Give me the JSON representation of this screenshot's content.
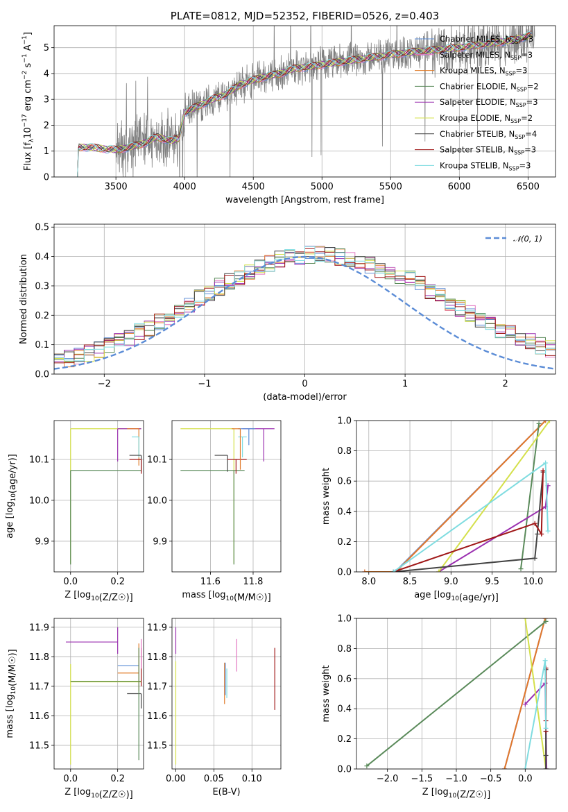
{
  "chart_data": [
    {
      "id": "spectrum",
      "type": "line",
      "title": "PLATE=0812, MJD=52352, FIBERID=0526, z=0.403",
      "xlabel": "wavelength [Angstrom, rest frame]",
      "ylabel": "Flux [f_λ 10^-17 erg cm^-2 s^-1 A^-1]",
      "xlim": [
        3050,
        6700
      ],
      "ylim": [
        0,
        5.85
      ],
      "xticks": [
        3500,
        4000,
        4500,
        5000,
        5500,
        6000,
        6500
      ],
      "yticks": [
        0,
        1,
        2,
        3,
        4,
        5
      ],
      "data_series": {
        "name": "data",
        "color": "#808080"
      },
      "models_continuum": {
        "x": [
          3220,
          3230,
          3300,
          3400,
          3500,
          3600,
          3700,
          3800,
          3900,
          3960,
          4000,
          4100,
          4200,
          4300,
          4400,
          4500,
          4600,
          4700,
          4800,
          4900,
          5000,
          5200,
          5400,
          5600,
          5800,
          6000,
          6200,
          6400,
          6530
        ],
        "y": [
          0.0,
          1.15,
          1.15,
          1.1,
          1.05,
          1.15,
          1.3,
          1.55,
          1.4,
          1.5,
          2.5,
          2.75,
          3.0,
          3.2,
          3.55,
          3.75,
          3.9,
          4.0,
          4.2,
          4.25,
          4.35,
          4.5,
          4.65,
          4.8,
          4.9,
          5.0,
          5.15,
          5.3,
          5.5
        ]
      },
      "legend": [
        {
          "name": "Chabrier MILES, N",
          "sub": "SSP",
          "val": "=3",
          "color": "#5b8cd6"
        },
        {
          "name": "Salpeter MILES, N",
          "sub": "SSP",
          "val": "=3",
          "color": "#e377c2"
        },
        {
          "name": "Kroupa MILES, N",
          "sub": "SSP",
          "val": "=3",
          "color": "#e07b2a"
        },
        {
          "name": "Chabrier ELODIE, N",
          "sub": "SSP",
          "val": "=2",
          "color": "#5a8a5a"
        },
        {
          "name": "Salpeter ELODIE, N",
          "sub": "SSP",
          "val": "=3",
          "color": "#9b30b0"
        },
        {
          "name": "Kroupa ELODIE, N",
          "sub": "SSP",
          "val": "=2",
          "color": "#d4e04a"
        },
        {
          "name": "Chabrier STELIB, N",
          "sub": "SSP",
          "val": "=4",
          "color": "#444444"
        },
        {
          "name": "Salpeter STELIB, N",
          "sub": "SSP",
          "val": "=3",
          "color": "#a01818"
        },
        {
          "name": "Kroupa STELIB, N",
          "sub": "SSP",
          "val": "=3",
          "color": "#7fdce0"
        }
      ]
    },
    {
      "id": "residuals",
      "type": "line",
      "xlabel": "(data-model)/error",
      "ylabel": "Normed distribution",
      "xlim": [
        -2.5,
        2.5
      ],
      "ylim": [
        0,
        0.51
      ],
      "xticks": [
        -2,
        -1,
        0,
        1,
        2
      ],
      "yticks": [
        0.0,
        0.1,
        0.2,
        0.3,
        0.4,
        0.5
      ],
      "legend_label": "𝒩(0, 1)",
      "gaussian_color": "#5b8cd6",
      "bin_width": 0.1,
      "series": [
        {
          "name": "Chabrier MILES",
          "color": "#5b8cd6"
        },
        {
          "name": "Salpeter MILES",
          "color": "#e377c2"
        },
        {
          "name": "Kroupa MILES",
          "color": "#e07b2a"
        },
        {
          "name": "Chabrier ELODIE",
          "color": "#5a8a5a"
        },
        {
          "name": "Salpeter ELODIE",
          "color": "#9b30b0"
        },
        {
          "name": "Kroupa ELODIE",
          "color": "#d4e04a"
        },
        {
          "name": "Chabrier STELIB",
          "color": "#444444"
        },
        {
          "name": "Salpeter STELIB",
          "color": "#a01818"
        },
        {
          "name": "Kroupa STELIB",
          "color": "#7fdce0"
        }
      ]
    },
    {
      "id": "age_vs_Z",
      "type": "scatter",
      "xlabel": "Z [log10(Z/Z☉)]",
      "ylabel": "age [log10(age/yr)]",
      "xlim": [
        -0.07,
        0.31
      ],
      "ylim": [
        9.825,
        10.195
      ],
      "xticks": [
        0.0,
        0.2
      ],
      "yticks": [
        9.9,
        10.0,
        10.1
      ],
      "points": [
        {
          "x": 0.0,
          "y": 10.175,
          "xerr": [
            0.0,
            0.3
          ],
          "yerr": [
            0.33,
            0.0
          ],
          "color": "#d4e04a"
        },
        {
          "x": 0.0,
          "y": 10.073,
          "xerr": [
            0.0,
            0.3
          ],
          "yerr": [
            0.23,
            0.0
          ],
          "color": "#5a8a5a"
        },
        {
          "x": 0.2,
          "y": 10.175,
          "xerr": [
            0.0,
            0.1
          ],
          "yerr": [
            0.08,
            0.0
          ],
          "color": "#9b30b0"
        },
        {
          "x": 0.29,
          "y": 10.175,
          "xerr": [
            0.05,
            0.0
          ],
          "yerr": [
            0.09,
            0.0
          ],
          "color": "#e07b2a"
        },
        {
          "x": 0.29,
          "y": 10.155,
          "xerr": [
            0.03,
            0.0
          ],
          "yerr": [
            0.05,
            0.0
          ],
          "color": "#7fdce0"
        },
        {
          "x": 0.3,
          "y": 10.11,
          "xerr": [
            0.05,
            0.0
          ],
          "yerr": [
            0.04,
            0.0
          ],
          "color": "#444444"
        },
        {
          "x": 0.3,
          "y": 10.1,
          "xerr": [
            0.05,
            0.0
          ],
          "yerr": [
            0.035,
            0.0
          ],
          "color": "#a01818"
        }
      ]
    },
    {
      "id": "age_vs_mass",
      "type": "scatter",
      "xlabel": "mass [log10(M/M☉)]",
      "xlim": [
        11.42,
        11.93
      ],
      "ylim": [
        9.825,
        10.195
      ],
      "xticks": [
        11.6,
        11.8
      ],
      "yticks": [
        9.9,
        10.0,
        10.1
      ],
      "points": [
        {
          "x": 11.71,
          "y": 10.175,
          "xerr": [
            0.25,
            0.0
          ],
          "yerr": [
            0.33,
            0.0
          ],
          "color": "#d4e04a"
        },
        {
          "x": 11.71,
          "y": 10.073,
          "xerr": [
            0.25,
            0.05
          ],
          "yerr": [
            0.23,
            0.0
          ],
          "color": "#5a8a5a"
        },
        {
          "x": 11.85,
          "y": 10.175,
          "xerr": [
            0.1,
            0.05
          ],
          "yerr": [
            0.08,
            0.0
          ],
          "color": "#9b30b0"
        },
        {
          "x": 11.78,
          "y": 10.175,
          "xerr": [
            0.05,
            0.03
          ],
          "yerr": [
            0.04,
            0.0
          ],
          "color": "#5b8cd6"
        },
        {
          "x": 11.75,
          "y": 10.155,
          "xerr": [
            0.02,
            0.02
          ],
          "yerr": [
            0.05,
            0.0
          ],
          "color": "#7fdce0"
        },
        {
          "x": 11.68,
          "y": 10.11,
          "xerr": [
            0.06,
            0.0
          ],
          "yerr": [
            0.04,
            0.0
          ],
          "color": "#444444"
        },
        {
          "x": 11.72,
          "y": 10.1,
          "xerr": [
            0.04,
            0.05
          ],
          "yerr": [
            0.035,
            0.0
          ],
          "color": "#a01818"
        },
        {
          "x": 11.74,
          "y": 10.175,
          "xerr": [
            0.04,
            0.0
          ],
          "yerr": [
            0.1,
            0.0
          ],
          "color": "#e07b2a"
        }
      ]
    },
    {
      "id": "weight_vs_age",
      "type": "line",
      "xlabel": "age [log10(age/yr)]",
      "ylabel": "mass weight",
      "xlim": [
        7.85,
        10.28
      ],
      "ylim": [
        0,
        1.0
      ],
      "xticks": [
        8.0,
        8.5,
        9.0,
        9.5,
        10.0
      ],
      "yticks": [
        0.0,
        0.2,
        0.4,
        0.6,
        0.8,
        1.0
      ],
      "series": [
        {
          "name": "Chabrier MILES",
          "color": "#5b8cd6",
          "x": [
            8.32,
            10.15
          ],
          "y": [
            0.0,
            1.0
          ]
        },
        {
          "name": "Salpeter MILES",
          "color": "#e377c2",
          "x": [
            7.95,
            8.33,
            10.15
          ],
          "y": [
            0.0,
            0.0,
            1.0
          ]
        },
        {
          "name": "Kroupa MILES",
          "color": "#e07b2a",
          "x": [
            7.95,
            8.33,
            10.15
          ],
          "y": [
            0.0,
            0.0,
            1.0
          ]
        },
        {
          "name": "Chabrier ELODIE",
          "color": "#5a8a5a",
          "x": [
            9.85,
            10.07
          ],
          "y": [
            0.02,
            0.98
          ]
        },
        {
          "name": "Salpeter ELODIE",
          "color": "#9b30b0",
          "x": [
            8.85,
            10.15,
            10.18
          ],
          "y": [
            0.0,
            0.43,
            0.57
          ]
        },
        {
          "name": "Kroupa ELODIE",
          "color": "#d4e04a",
          "x": [
            8.85,
            10.2
          ],
          "y": [
            0.0,
            1.0
          ]
        },
        {
          "name": "Chabrier STELIB",
          "color": "#444444",
          "x": [
            8.3,
            10.02,
            10.05,
            10.12
          ],
          "y": [
            0.0,
            0.09,
            0.25,
            0.66
          ]
        },
        {
          "name": "Salpeter STELIB",
          "color": "#a01818",
          "x": [
            8.3,
            10.02,
            10.1,
            10.12
          ],
          "y": [
            0.0,
            0.32,
            0.25,
            0.67
          ]
        },
        {
          "name": "Kroupa STELIB",
          "color": "#7fdce0",
          "x": [
            8.3,
            10.15,
            10.18
          ],
          "y": [
            0.0,
            0.72,
            0.27
          ]
        }
      ]
    },
    {
      "id": "mass_vs_Z",
      "type": "scatter",
      "xlabel": "Z [log10(Z/Z☉)]",
      "ylabel": "mass [log10(M/M☉)]",
      "xlim": [
        -0.07,
        0.31
      ],
      "ylim": [
        11.42,
        11.93
      ],
      "xticks": [
        0.0,
        0.2
      ],
      "yticks": [
        11.5,
        11.6,
        11.7,
        11.8,
        11.9
      ],
      "points": [
        {
          "x": 0.0,
          "y": 11.715,
          "xerr": [
            0.0,
            0.3
          ],
          "yerr": [
            0.28,
            0.06
          ],
          "color": "#d4e04a"
        },
        {
          "x": 0.0,
          "y": 11.717,
          "xerr": [
            0.0,
            0.3
          ],
          "yerr": [
            0.0,
            0.0
          ],
          "color": "#5a8a5a"
        },
        {
          "x": 0.2,
          "y": 11.85,
          "xerr": [
            0.22,
            0.0
          ],
          "yerr": [
            0.04,
            0.05
          ],
          "color": "#9b30b0"
        },
        {
          "x": 0.29,
          "y": 11.77,
          "xerr": [
            0.09,
            0.0
          ],
          "yerr": [
            0.0,
            0.0
          ],
          "color": "#5b8cd6"
        },
        {
          "x": 0.29,
          "y": 11.745,
          "xerr": [
            0.09,
            0.0
          ],
          "yerr": [
            0.06,
            0.1
          ],
          "color": "#e07b2a"
        },
        {
          "x": 0.3,
          "y": 11.675,
          "xerr": [
            0.06,
            0.0
          ],
          "yerr": [
            0.05,
            0.0
          ],
          "color": "#444444"
        },
        {
          "x": 0.29,
          "y": 11.75,
          "xerr": [
            0.0,
            0.0
          ],
          "yerr": [
            0.3,
            0.08
          ],
          "color": "#5a8a5a"
        },
        {
          "x": 0.3,
          "y": 11.75,
          "xerr": [
            0.0,
            0.0
          ],
          "yerr": [
            0.05,
            0.08
          ],
          "color": "#a01818"
        },
        {
          "x": 0.3,
          "y": 11.8,
          "xerr": [
            0.0,
            0.0
          ],
          "yerr": [
            0.04,
            0.06
          ],
          "color": "#e377c2"
        }
      ]
    },
    {
      "id": "mass_vs_EBV",
      "type": "scatter",
      "xlabel": "E(B-V)",
      "xlim": [
        -0.005,
        0.138
      ],
      "ylim": [
        11.42,
        11.93
      ],
      "xticks": [
        0.0,
        0.05,
        0.1
      ],
      "yticks": [
        11.5,
        11.6,
        11.7,
        11.8,
        11.9
      ],
      "points": [
        {
          "x": 0.0,
          "y": 11.715,
          "yerr": [
            0.28,
            0.07
          ],
          "color": "#d4e04a"
        },
        {
          "x": 0.0,
          "y": 11.85,
          "yerr": [
            0.04,
            0.05
          ],
          "color": "#9b30b0"
        },
        {
          "x": 0.064,
          "y": 11.71,
          "yerr": [
            0.07,
            0.07
          ],
          "color": "#e07b2a"
        },
        {
          "x": 0.065,
          "y": 11.72,
          "yerr": [
            0.05,
            0.06
          ],
          "color": "#5b8cd6"
        },
        {
          "x": 0.067,
          "y": 11.71,
          "yerr": [
            0.05,
            0.05
          ],
          "color": "#7fdce0"
        },
        {
          "x": 0.08,
          "y": 11.8,
          "yerr": [
            0.05,
            0.06
          ],
          "color": "#e377c2"
        },
        {
          "x": 0.13,
          "y": 11.73,
          "yerr": [
            0.11,
            0.1
          ],
          "color": "#a01818"
        }
      ]
    },
    {
      "id": "weight_vs_Z",
      "type": "line",
      "xlabel": "Z [log10(Z/Z☉)]",
      "ylabel": "mass weight",
      "xlim": [
        -2.45,
        0.45
      ],
      "ylim": [
        0,
        1.0
      ],
      "xticks": [
        -2.0,
        -1.5,
        -1.0,
        -0.5,
        0.0
      ],
      "yticks": [
        0.0,
        0.2,
        0.4,
        0.6,
        0.8,
        1.0
      ],
      "series": [
        {
          "name": "Chabrier MILES",
          "color": "#5b8cd6",
          "x": [
            -0.3,
            0.29
          ],
          "y": [
            0.0,
            1.0
          ]
        },
        {
          "name": "Salpeter MILES",
          "color": "#e377c2",
          "x": [
            -0.3,
            0.29
          ],
          "y": [
            0.0,
            1.0
          ]
        },
        {
          "name": "Kroupa MILES",
          "color": "#e07b2a",
          "x": [
            -0.3,
            0.29
          ],
          "y": [
            0.0,
            1.0
          ]
        },
        {
          "name": "Chabrier ELODIE",
          "color": "#5a8a5a",
          "x": [
            -2.3,
            0.3
          ],
          "y": [
            0.02,
            0.98
          ]
        },
        {
          "name": "Salpeter ELODIE",
          "color": "#9b30b0",
          "x": [
            0.0,
            0.29,
            0.31
          ],
          "y": [
            0.43,
            0.57,
            0.0
          ]
        },
        {
          "name": "Kroupa ELODIE",
          "color": "#d4e04a",
          "x": [
            0.0,
            0.3
          ],
          "y": [
            1.0,
            0.0
          ]
        },
        {
          "name": "Chabrier STELIB",
          "color": "#444444",
          "x": [
            0.3,
            0.3,
            0.3,
            0.3
          ],
          "y": [
            0.09,
            0.25,
            0.66,
            0.0
          ]
        },
        {
          "name": "Salpeter STELIB",
          "color": "#a01818",
          "x": [
            0.3,
            0.3,
            0.3
          ],
          "y": [
            0.32,
            0.25,
            0.67
          ]
        },
        {
          "name": "Kroupa STELIB",
          "color": "#7fdce0",
          "x": [
            0.0,
            0.29,
            0.3
          ],
          "y": [
            0.0,
            0.72,
            0.27
          ]
        }
      ]
    }
  ]
}
